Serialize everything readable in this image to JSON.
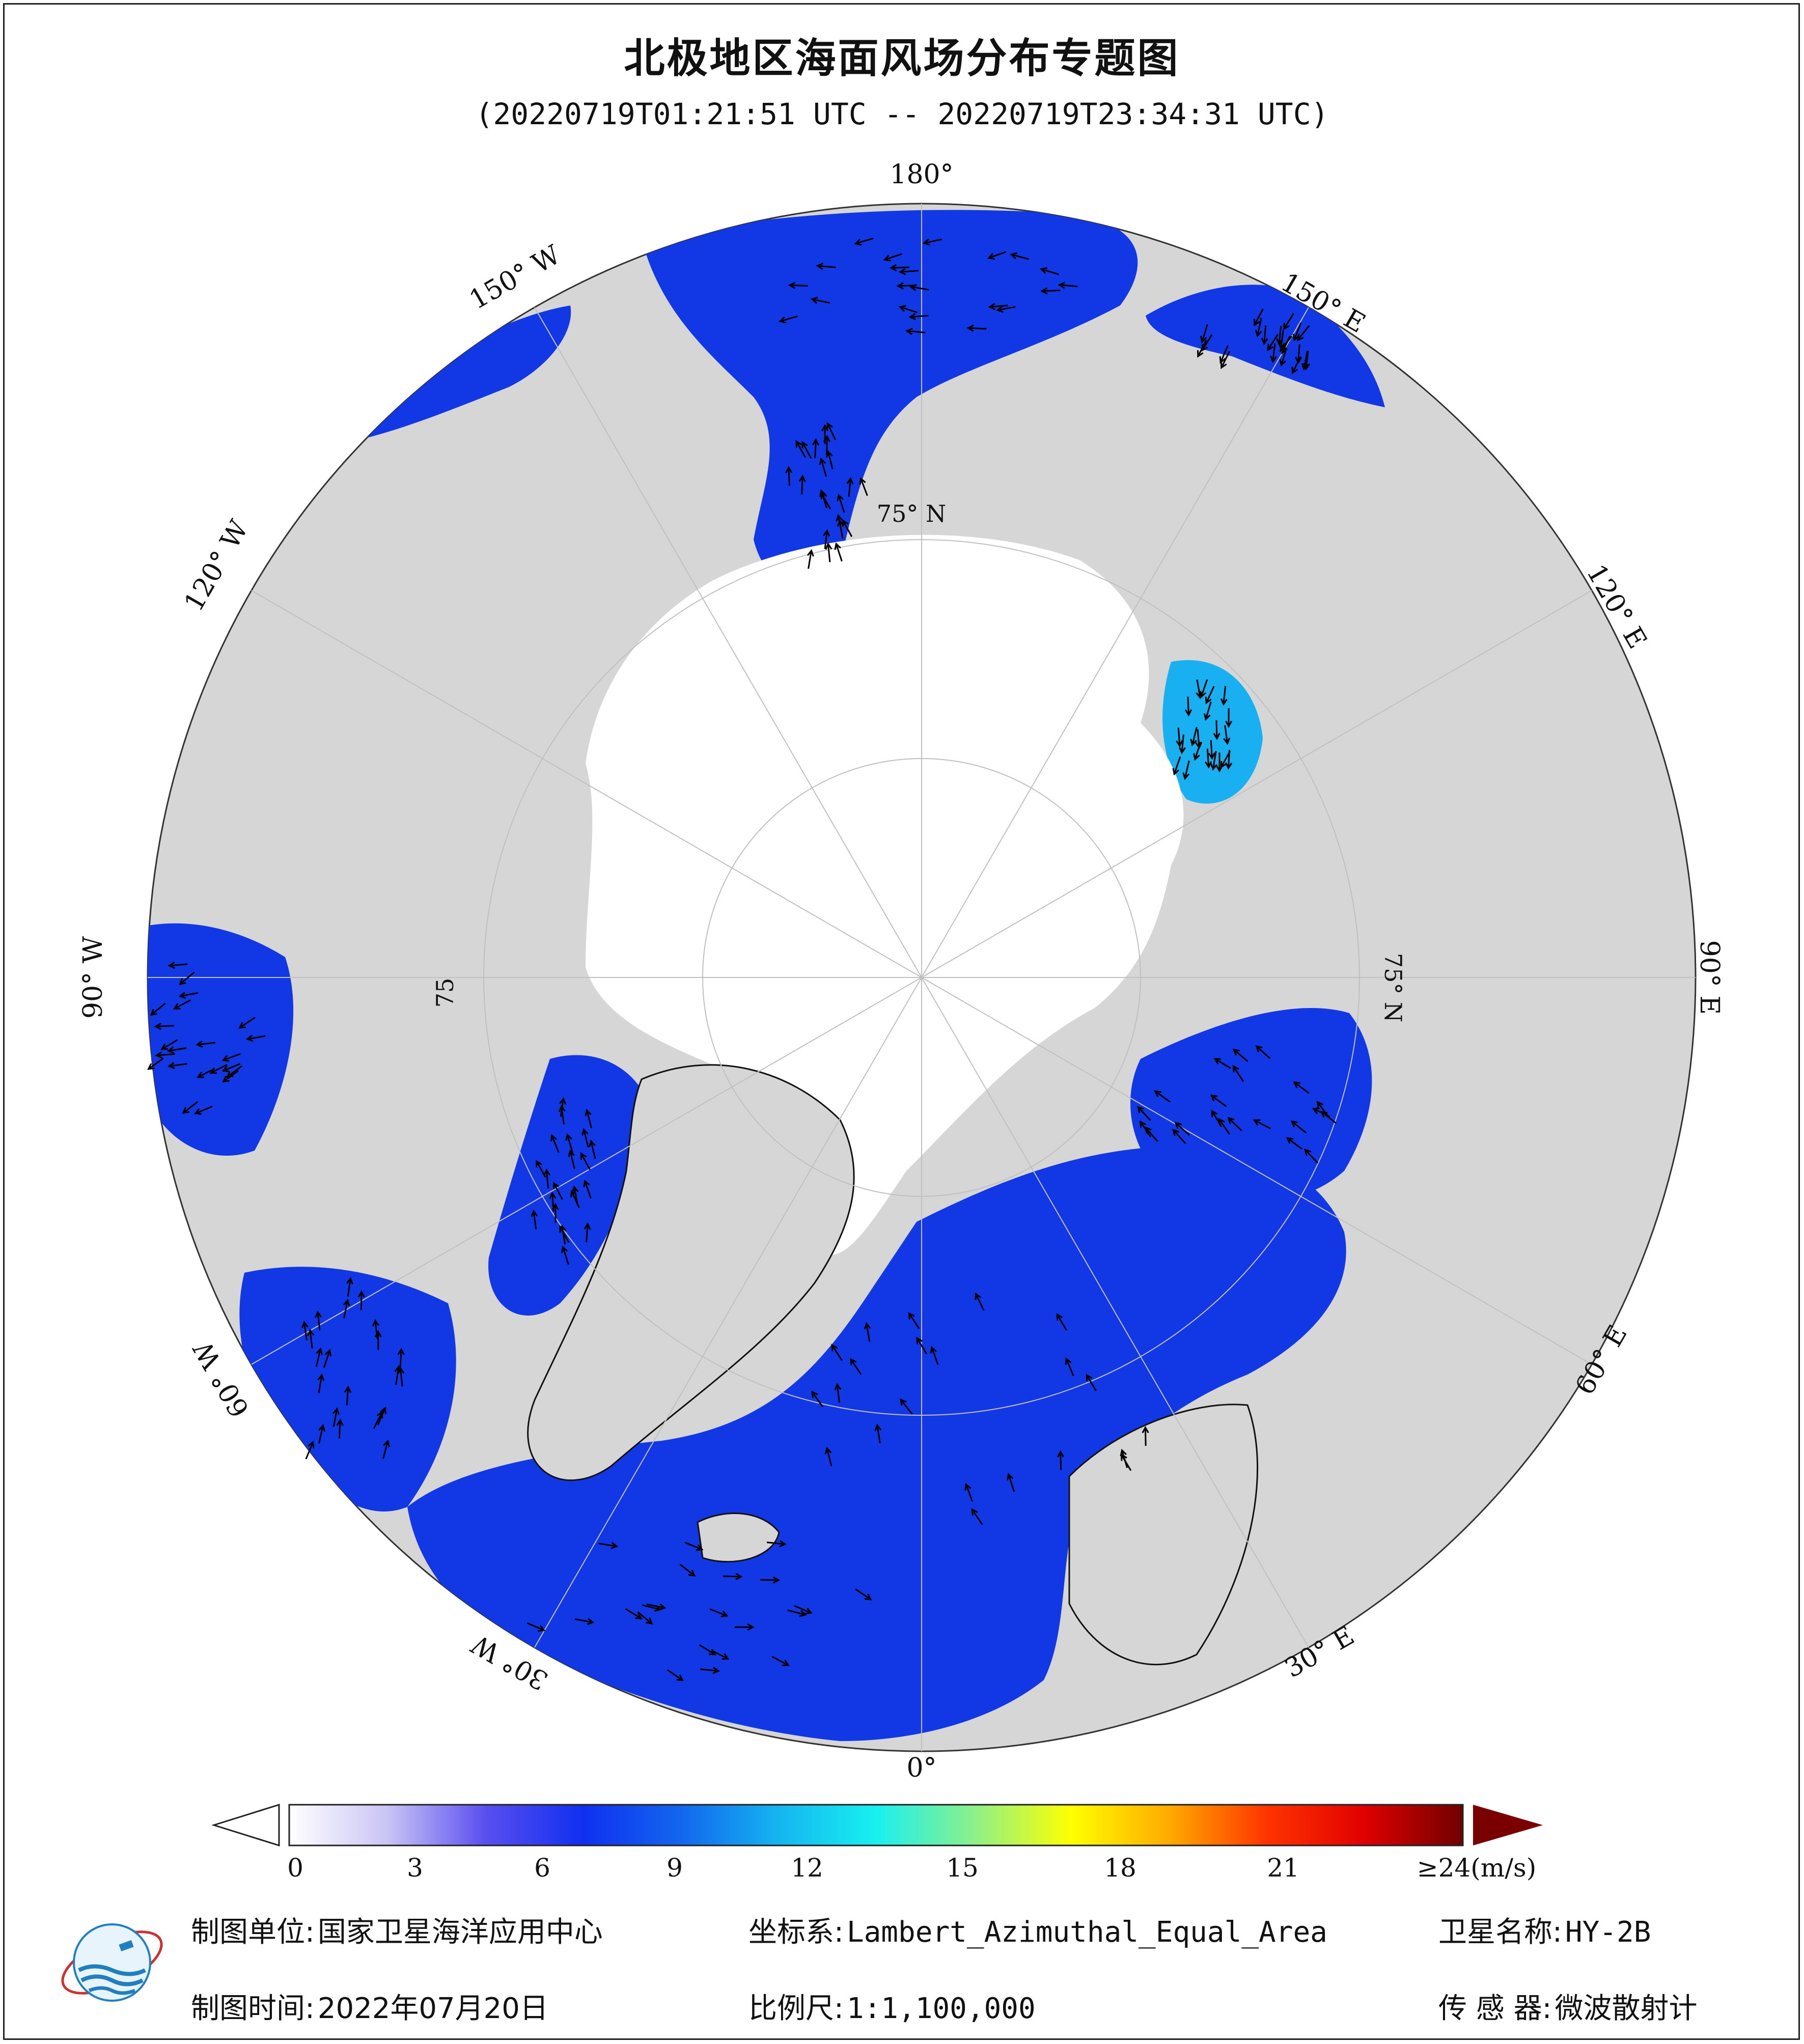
{
  "title": "北极地区海面风场分布专题图",
  "time_range": "(20220719T01:21:51 UTC -- 20220719T23:34:31 UTC)",
  "graticule": {
    "lon_labels": [
      "180°",
      "150° E",
      "120° E",
      "90° E",
      "60° E",
      "30° E",
      "0°",
      "30° W",
      "60° W",
      "90° W",
      "120° W",
      "150° W"
    ],
    "lat_labels": [
      "75° N",
      "75° N",
      "75"
    ]
  },
  "colorbar": {
    "unit_suffix": "≥24(m/s)",
    "ticks": [
      "0",
      "3",
      "6",
      "9",
      "12",
      "15",
      "18",
      "21"
    ],
    "colors": [
      "#ffffff",
      "#c9c5f5",
      "#5a4ff0",
      "#1030f0",
      "#1266ee",
      "#15b5f0",
      "#18f0f0",
      "#8cf08a",
      "#ffff00",
      "#ffaa00",
      "#ff3300",
      "#e00000",
      "#700000"
    ],
    "over_color": "#7a0000",
    "under_color": "#ffffff"
  },
  "colors": {
    "land": "#d6d6d6",
    "ice": "#ffffff",
    "water_low": "#1238e6",
    "water_mid": "#18b0f0",
    "water_high": "#80f070",
    "calm": "#b8b0f0"
  },
  "footer": {
    "unit_label": "制图单位:",
    "unit_value": "国家卫星海洋应用中心",
    "crs_label": "坐标系:",
    "crs_value": "Lambert_Azimuthal_Equal_Area",
    "sat_label": "卫星名称:",
    "sat_value": "HY-2B",
    "date_label": "制图时间:",
    "date_value": "2022年07月20日",
    "scale_label": "比例尺:",
    "scale_value": "1:1,100,000",
    "sensor_label": "传 感 器:",
    "sensor_value": "微波散射计"
  },
  "logo": {
    "name": "nsoas-logo"
  }
}
